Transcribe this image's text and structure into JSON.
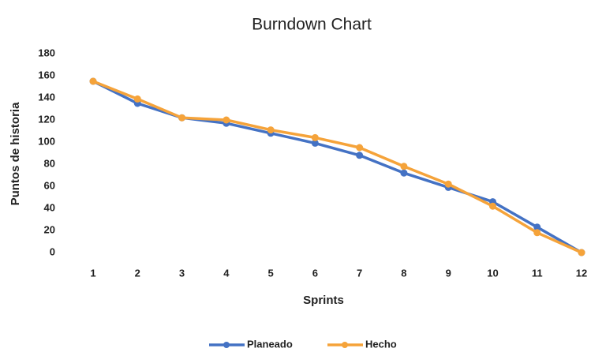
{
  "chart_data": {
    "type": "line",
    "title": "Burndown Chart",
    "x_label": "Sprints",
    "y_label": "Puntos de historia",
    "categories": [
      "1",
      "2",
      "3",
      "4",
      "5",
      "6",
      "7",
      "8",
      "9",
      "10",
      "11",
      "12"
    ],
    "series": [
      {
        "name": "Planeado",
        "color": "#4472c4",
        "values": [
          155,
          135,
          122,
          117,
          108,
          99,
          88,
          72,
          59,
          46,
          23,
          0
        ]
      },
      {
        "name": "Hecho",
        "color": "#f5a33a",
        "values": [
          155,
          139,
          122,
          120,
          111,
          104,
          95,
          78,
          62,
          42,
          18,
          0
        ]
      }
    ],
    "ylim": [
      0,
      180
    ],
    "yticks": [
      0,
      20,
      40,
      60,
      80,
      100,
      120,
      140,
      160,
      180
    ],
    "grid": false
  }
}
